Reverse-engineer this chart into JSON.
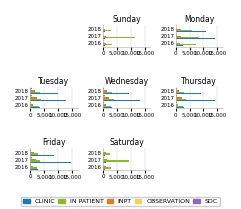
{
  "days": [
    "Sunday",
    "Monday",
    "Tuesday",
    "Wednesday",
    "Thursday",
    "Friday",
    "Saturday"
  ],
  "layout": [
    [
      null,
      "Sunday",
      "Monday"
    ],
    [
      "Tuesday",
      "Wednesday",
      "Thursday"
    ],
    [
      "Friday",
      "Saturday",
      null
    ]
  ],
  "years": [
    "2016",
    "2017",
    "2018"
  ],
  "categories": [
    "CLINIC",
    "IN PATIENT",
    "INPT",
    "OBSERVATION",
    "SDC"
  ],
  "colors": [
    "#1f77b4",
    "#8ab832",
    "#d97c2b",
    "#f0d060",
    "#9467bd"
  ],
  "data": {
    "Sunday": {
      "2016": [
        700,
        3200,
        900,
        200,
        100
      ],
      "2017": [
        800,
        11500,
        1200,
        300,
        150
      ],
      "2018": [
        600,
        2800,
        800,
        150,
        80
      ]
    },
    "Monday": {
      "2016": [
        2500,
        7500,
        1500,
        400,
        200
      ],
      "2017": [
        14000,
        8500,
        2000,
        500,
        250
      ],
      "2018": [
        11000,
        6000,
        1800,
        350,
        180
      ]
    },
    "Tuesday": {
      "2016": [
        3500,
        3000,
        1000,
        350,
        400
      ],
      "2017": [
        13000,
        4000,
        2500,
        600,
        700
      ],
      "2018": [
        10000,
        3500,
        1500,
        400,
        500
      ]
    },
    "Wednesday": {
      "2016": [
        3200,
        2800,
        900,
        300,
        350
      ],
      "2017": [
        13500,
        3800,
        2200,
        550,
        600
      ],
      "2018": [
        9500,
        3200,
        1400,
        350,
        450
      ]
    },
    "Thursday": {
      "2016": [
        3000,
        2600,
        850,
        280,
        320
      ],
      "2017": [
        14000,
        3600,
        2100,
        520,
        580
      ],
      "2018": [
        9000,
        3000,
        1300,
        330,
        420
      ]
    },
    "Friday": {
      "2016": [
        2800,
        2400,
        800,
        260,
        300
      ],
      "2017": [
        14500,
        3400,
        2000,
        500,
        560
      ],
      "2018": [
        8500,
        2800,
        1200,
        310,
        400
      ]
    },
    "Saturday": {
      "2016": [
        800,
        3000,
        1000,
        200,
        120
      ],
      "2017": [
        900,
        9500,
        1300,
        320,
        170
      ],
      "2018": [
        700,
        2600,
        900,
        160,
        90
      ]
    }
  },
  "xlim": [
    0,
    17000
  ],
  "xticks": [
    0,
    5000,
    10000,
    15000
  ],
  "xtick_labels": [
    "0",
    "5,000",
    "10,000",
    "15,000"
  ],
  "background_color": "#ffffff",
  "title_fontsize": 5.5,
  "tick_fontsize": 4.0,
  "label_fontsize": 4.0,
  "legend_fontsize": 4.5
}
